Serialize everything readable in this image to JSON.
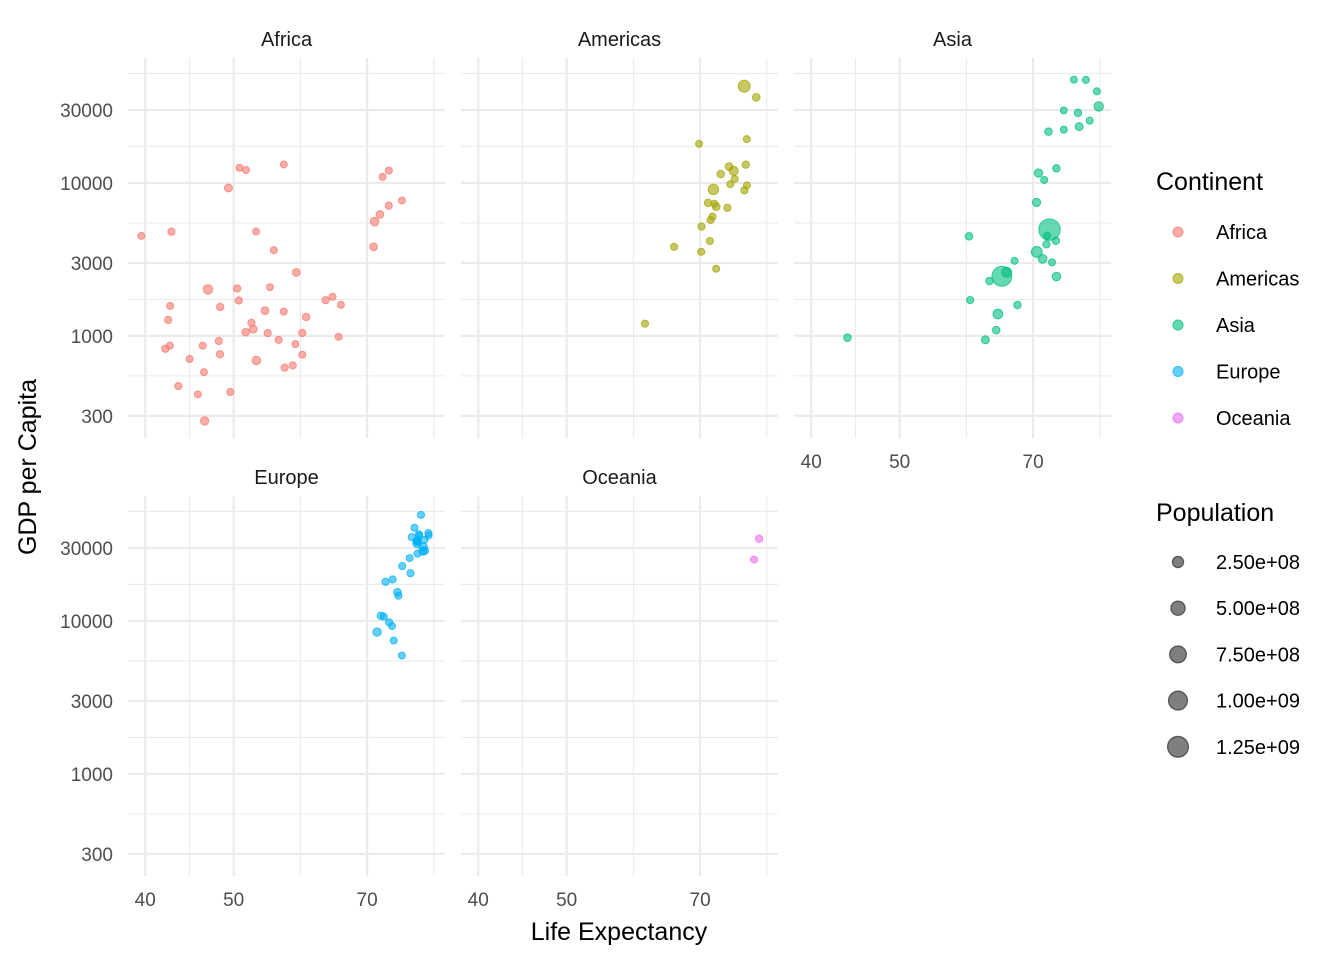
{
  "chart_data": {
    "type": "scatter",
    "title": "",
    "xlabel": "Life Expectancy",
    "ylabel": "GDP per Capita",
    "x_scale": "log10",
    "y_scale": "log10",
    "xlim": [
      38.3,
      85.2
    ],
    "ylim": [
      215,
      65600
    ],
    "x_ticks": [
      40,
      50,
      70
    ],
    "x_tick_labels": [
      "40",
      "50",
      "70"
    ],
    "y_ticks": [
      300,
      1000,
      3000,
      10000,
      30000
    ],
    "y_tick_labels": [
      "300",
      "1000",
      "3000",
      "10000",
      "30000"
    ],
    "grid": true,
    "facets": [
      "Africa",
      "Americas",
      "Asia",
      "Europe",
      "Oceania"
    ],
    "legend_color": {
      "title": "Continent",
      "position": "right",
      "entries": [
        {
          "label": "Africa",
          "color": "#F8766D"
        },
        {
          "label": "Americas",
          "color": "#A3A500"
        },
        {
          "label": "Asia",
          "color": "#00BF7D"
        },
        {
          "label": "Europe",
          "color": "#00B0F6"
        },
        {
          "label": "Oceania",
          "color": "#E76BF3"
        }
      ]
    },
    "legend_size": {
      "title": "Population",
      "position": "right",
      "color": "#000000",
      "entries": [
        {
          "label": "2.50e+08",
          "value": 250000000
        },
        {
          "label": "5.00e+08",
          "value": 500000000
        },
        {
          "label": "7.50e+08",
          "value": 750000000
        },
        {
          "label": "1.00e+09",
          "value": 1000000000
        },
        {
          "label": "1.25e+09",
          "value": 1250000000
        }
      ]
    },
    "point_alpha": 0.6,
    "series": [
      {
        "name": "Africa",
        "points": [
          [
            72.301,
            6223,
            33.3
          ],
          [
            42.731,
            4797,
            12.4
          ],
          [
            56.728,
            1441,
            8.08
          ],
          [
            50.728,
            12570,
            1.64
          ],
          [
            52.295,
            1217,
            14.3
          ],
          [
            49.58,
            430,
            8.39
          ],
          [
            50.43,
            2042,
            17.7
          ],
          [
            44.741,
            706,
            4.37
          ],
          [
            50.651,
            1704,
            10.2
          ],
          [
            65.152,
            986,
            0.71
          ],
          [
            46.462,
            278,
            64.6
          ],
          [
            55.322,
            3633,
            3.8
          ],
          [
            48.328,
            1545,
            18.0
          ],
          [
            54.791,
            2082,
            0.5
          ],
          [
            71.338,
            5581,
            80.3
          ],
          [
            51.579,
            12154,
            0.55
          ],
          [
            58.04,
            641,
            4.9
          ],
          [
            52.947,
            691,
            76.5
          ],
          [
            56.735,
            13206,
            1.45
          ],
          [
            59.448,
            753,
            1.69
          ],
          [
            60.022,
            1328,
            22.9
          ],
          [
            56.007,
            943,
            9.95
          ],
          [
            46.388,
            579,
            1.47
          ],
          [
            54.11,
            1463,
            35.6
          ],
          [
            42.592,
            1569,
            2.01
          ],
          [
            45.678,
            415,
            3.19
          ],
          [
            73.952,
            12057,
            6.04
          ],
          [
            59.443,
            1045,
            19.2
          ],
          [
            48.303,
            759,
            13.3
          ],
          [
            54.467,
            1043,
            12.0
          ],
          [
            64.164,
            1803,
            3.27
          ],
          [
            72.801,
            10957,
            1.25
          ],
          [
            71.164,
            3820,
            33.8
          ],
          [
            42.082,
            824,
            20.0
          ],
          [
            52.906,
            4811,
            2.06
          ],
          [
            56.867,
            620,
            12.9
          ],
          [
            46.859,
            2014,
            135
          ],
          [
            76.442,
            7670,
            0.8
          ],
          [
            46.242,
            863,
            8.86
          ],
          [
            65.528,
            1598,
            0.2
          ],
          [
            63.062,
            1712,
            12.3
          ],
          [
            42.568,
            863,
            6.14
          ],
          [
            48.159,
            926,
            9.12
          ],
          [
            49.339,
            9270,
            44.0
          ],
          [
            58.556,
            2602,
            42.3
          ],
          [
            39.613,
            4513,
            1.13
          ],
          [
            52.517,
            1107,
            38.1
          ],
          [
            58.42,
            883,
            5.7
          ],
          [
            73.923,
            7093,
            10.3
          ],
          [
            51.542,
            1056,
            29.2
          ],
          [
            42.384,
            1271,
            11.7
          ],
          [
            43.487,
            470,
            12.3
          ]
        ]
      },
      {
        "name": "Americas",
        "points": [
          [
            75.32,
            12779,
            40.3
          ],
          [
            65.554,
            3822,
            9.12
          ],
          [
            72.39,
            9066,
            190
          ],
          [
            80.653,
            36319,
            33.4
          ],
          [
            78.553,
            13172,
            16.3
          ],
          [
            72.889,
            7007,
            44.2
          ],
          [
            78.782,
            9645,
            4.13
          ],
          [
            78.273,
            8948,
            11.4
          ],
          [
            72.235,
            6025,
            9.32
          ],
          [
            74.994,
            6873,
            13.8
          ],
          [
            71.878,
            5728,
            6.94
          ],
          [
            70.259,
            5186,
            12.6
          ],
          [
            60.916,
            1202,
            8.5
          ],
          [
            70.198,
            3548,
            7.48
          ],
          [
            72.567,
            7321,
            2.78
          ],
          [
            76.195,
            11978,
            109
          ],
          [
            72.899,
            2749,
            5.68
          ],
          [
            75.537,
            9809,
            3.24
          ],
          [
            71.752,
            4173,
            6.67
          ],
          [
            71.421,
            7409,
            28.7
          ],
          [
            78.746,
            19329,
            3.94
          ],
          [
            69.819,
            18009,
            1.06
          ],
          [
            78.242,
            42952,
            301
          ],
          [
            76.384,
            10611,
            3.45
          ],
          [
            73.747,
            11416,
            26.1
          ]
        ]
      },
      {
        "name": "Asia",
        "points": [
          [
            43.828,
            974,
            31.9
          ],
          [
            75.635,
            29796,
            0.71
          ],
          [
            64.062,
            1391,
            150
          ],
          [
            59.723,
            1714,
            14.1
          ],
          [
            72.961,
            4959,
            1319
          ],
          [
            82.208,
            39725,
            6.98
          ],
          [
            64.698,
            2452,
            1110
          ],
          [
            70.65,
            3541,
            224
          ],
          [
            70.964,
            11606,
            69.5
          ],
          [
            59.545,
            4471,
            27.5
          ],
          [
            80.745,
            25523,
            6.43
          ],
          [
            82.603,
            31656,
            127
          ],
          [
            72.535,
            4519,
            6.05
          ],
          [
            67.297,
            1593,
            23.3
          ],
          [
            78.623,
            23348,
            49.0
          ],
          [
            77.588,
            47307,
            2.51
          ],
          [
            71.993,
            10461,
            3.92
          ],
          [
            74.241,
            12452,
            24.8
          ],
          [
            66.803,
            3096,
            2.87
          ],
          [
            62.069,
            944,
            47.8
          ],
          [
            63.785,
            1091,
            28.9
          ],
          [
            75.64,
            22316,
            3.2
          ],
          [
            65.483,
            2606,
            169
          ],
          [
            71.688,
            3190,
            91.1
          ],
          [
            72.777,
            21655,
            27.6
          ],
          [
            79.972,
            47143,
            4.55
          ],
          [
            72.396,
            3970,
            20.4
          ],
          [
            74.143,
            4185,
            19.3
          ],
          [
            78.4,
            28718,
            23.2
          ],
          [
            70.616,
            7458,
            65.1
          ],
          [
            74.249,
            2442,
            85.3
          ],
          [
            73.422,
            3025,
            4.02
          ],
          [
            62.698,
            2281,
            22.2
          ]
        ]
      },
      {
        "name": "Europe",
        "points": [
          [
            76.423,
            5937,
            3.6
          ],
          [
            79.829,
            36126,
            8.2
          ],
          [
            79.441,
            33693,
            10.4
          ],
          [
            74.852,
            7446,
            4.55
          ],
          [
            73.005,
            10681,
            7.32
          ],
          [
            75.748,
            14619,
            4.49
          ],
          [
            76.486,
            22833,
            10.2
          ],
          [
            78.332,
            35278,
            5.47
          ],
          [
            79.313,
            33207,
            5.24
          ],
          [
            80.657,
            30470,
            61.1
          ],
          [
            79.406,
            32170,
            82.4
          ],
          [
            79.483,
            27538,
            10.7
          ],
          [
            73.338,
            18009,
            9.96
          ],
          [
            81.757,
            36181,
            0.3
          ],
          [
            78.885,
            40676,
            4.11
          ],
          [
            80.546,
            28570,
            58.1
          ],
          [
            74.543,
            9254,
            0.68
          ],
          [
            79.762,
            36798,
            16.6
          ],
          [
            80.196,
            49357,
            4.63
          ],
          [
            75.563,
            15390,
            38.5
          ],
          [
            78.098,
            20510,
            10.6
          ],
          [
            72.476,
            10808,
            22.3
          ],
          [
            74.002,
            9787,
            10.2
          ],
          [
            74.663,
            18678,
            5.45
          ],
          [
            77.926,
            25768,
            2.01
          ],
          [
            80.941,
            28821,
            40.4
          ],
          [
            80.884,
            33860,
            9.03
          ],
          [
            81.701,
            37506,
            7.55
          ],
          [
            71.777,
            8458,
            71.2
          ],
          [
            79.425,
            33203,
            60.8
          ]
        ]
      },
      {
        "name": "Oceania",
        "points": [
          [
            81.235,
            34435,
            20.4
          ],
          [
            80.204,
            25185,
            4.12
          ]
        ]
      }
    ],
    "point_format": [
      "lifeExp",
      "gdpPercap",
      "pop_millions"
    ]
  }
}
